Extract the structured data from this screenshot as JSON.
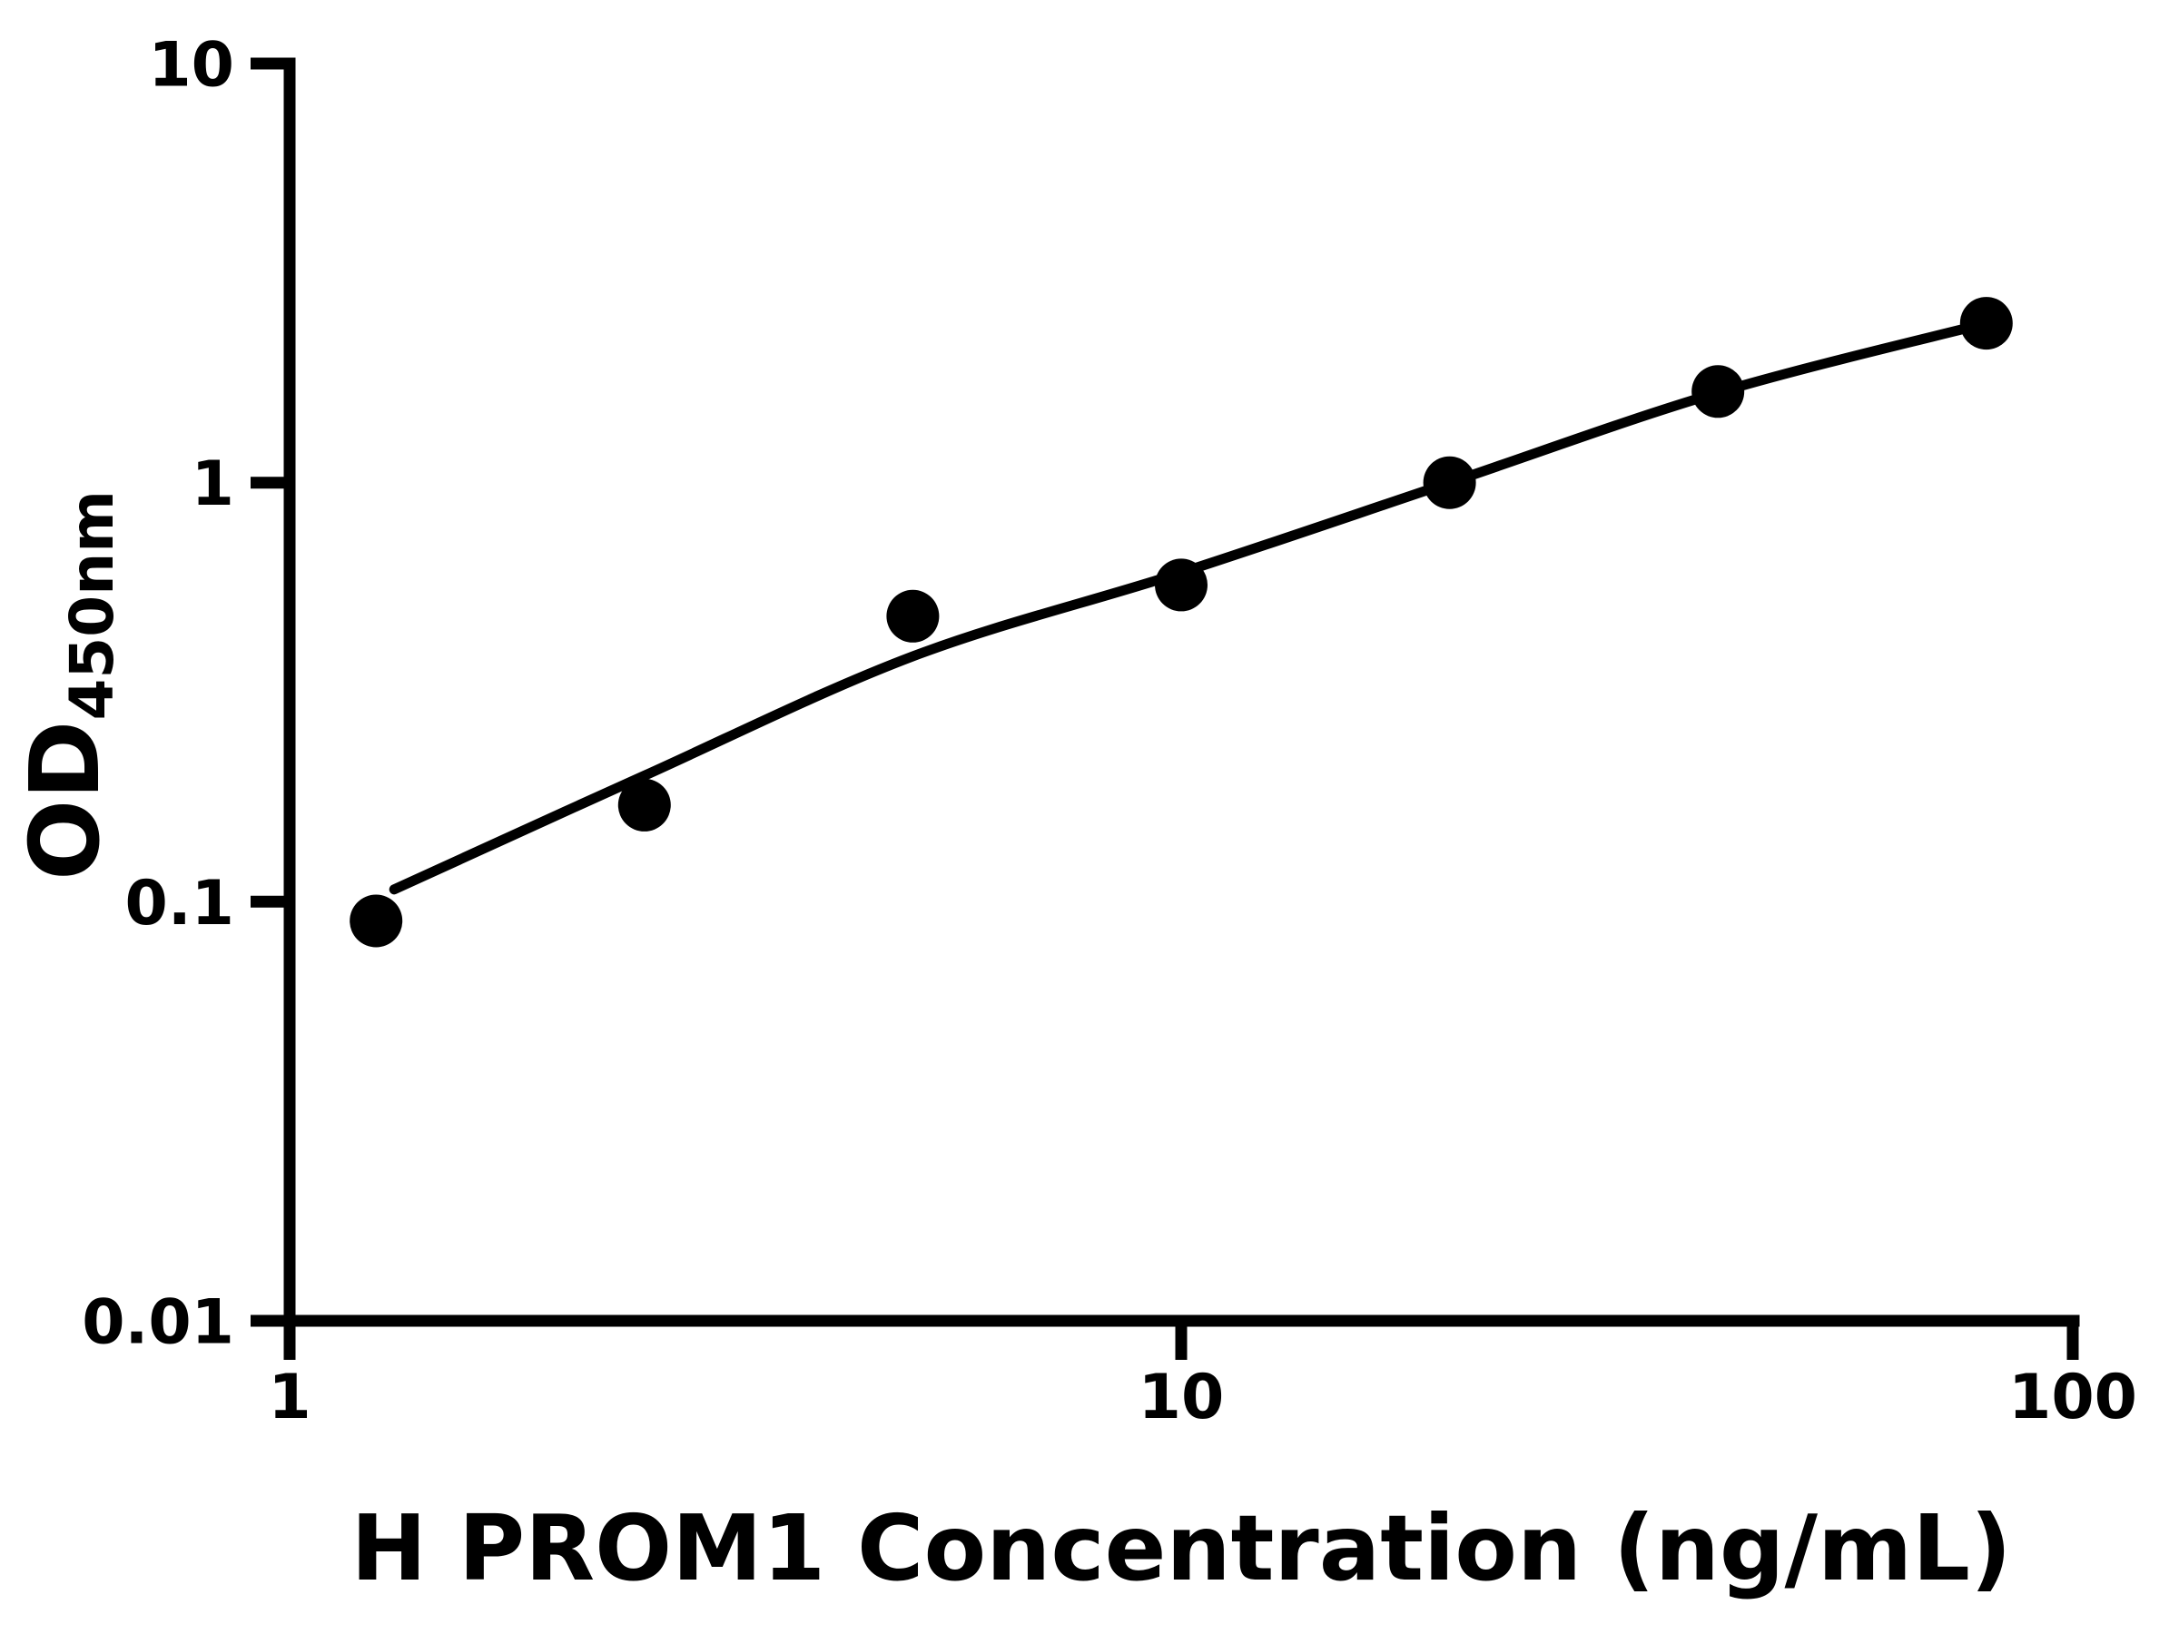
{
  "chart_data": {
    "type": "scatter",
    "title": "",
    "xlabel": "H PROM1 Concentration (ng/mL)",
    "ylabel": "OD450nm",
    "ylabel_main": "OD",
    "ylabel_sub": "450nm",
    "x_scale": "log",
    "y_scale": "log",
    "xlim": [
      1,
      100
    ],
    "ylim": [
      0.01,
      10
    ],
    "grid": false,
    "legend_position": "none",
    "x_ticks": [
      {
        "value": 1,
        "label": "1"
      },
      {
        "value": 10,
        "label": "10"
      },
      {
        "value": 100,
        "label": "100"
      }
    ],
    "y_ticks": [
      {
        "value": 10,
        "label": "10"
      },
      {
        "value": 1,
        "label": "1"
      },
      {
        "value": 0.1,
        "label": "0.1"
      },
      {
        "value": 0.01,
        "label": "0.01"
      }
    ],
    "series": [
      {
        "name": "standard-points",
        "type": "scatter",
        "marker": "filled-circle",
        "color": "#000000",
        "points": [
          {
            "x": 1.25,
            "y": 0.09
          },
          {
            "x": 2.5,
            "y": 0.17
          },
          {
            "x": 5,
            "y": 0.48
          },
          {
            "x": 10,
            "y": 0.57
          },
          {
            "x": 20,
            "y": 1.0
          },
          {
            "x": 40,
            "y": 1.65
          },
          {
            "x": 80,
            "y": 2.4
          }
        ]
      },
      {
        "name": "fitted-curve",
        "type": "line",
        "color": "#000000",
        "points": [
          {
            "x": 1.31,
            "y": 0.107
          },
          {
            "x": 2.5,
            "y": 0.2
          },
          {
            "x": 5,
            "y": 0.385
          },
          {
            "x": 10,
            "y": 0.61
          },
          {
            "x": 20,
            "y": 1.0
          },
          {
            "x": 40,
            "y": 1.64
          },
          {
            "x": 80,
            "y": 2.4
          }
        ]
      }
    ],
    "colors": {
      "foreground": "#000000",
      "background": "#ffffff"
    }
  }
}
